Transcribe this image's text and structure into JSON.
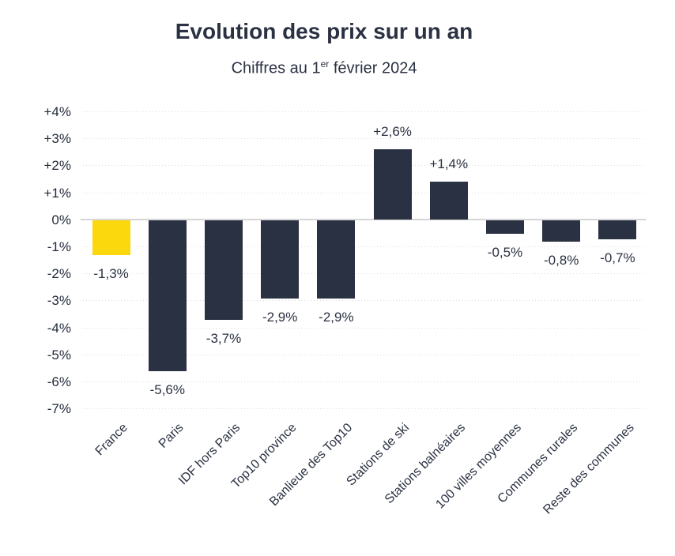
{
  "header": {
    "subtitle_prefix": "Chiffres au 1",
    "subtitle_sup": "er",
    "subtitle_suffix": " février 2024"
  },
  "chart_data": {
    "type": "bar",
    "title": "Evolution des prix sur un an",
    "subtitle": "Chiffres au 1er février 2024",
    "categories": [
      "France",
      "Paris",
      "IDF hors Paris",
      "Top10 province",
      "Banlieue des Top10",
      "Stations de ski",
      "Stations balnéaires",
      "100 villes moyennes",
      "Communes rurales",
      "Reste des communes"
    ],
    "values": [
      -1.3,
      -5.6,
      -3.7,
      -2.9,
      -2.9,
      2.6,
      1.4,
      -0.5,
      -0.8,
      -0.7
    ],
    "value_labels": [
      "-1,3%",
      "-5,6%",
      "-3,7%",
      "-2,9%",
      "-2,9%",
      "+2,6%",
      "+1,4%",
      "-0,5%",
      "-0,8%",
      "-0,7%"
    ],
    "highlight_index": 0,
    "ylim": [
      -7,
      4
    ],
    "ytick_step": 1,
    "ytick_labels": [
      "+4%",
      "+3%",
      "+2%",
      "+1%",
      "0%",
      "-1%",
      "-2%",
      "-3%",
      "-4%",
      "-5%",
      "-6%",
      "-7%"
    ],
    "grid": "horizontal-dotted",
    "legend": "none",
    "xlabel": "",
    "ylabel": "",
    "colors": {
      "bar": "#2A3142",
      "highlight": "#FBD80D",
      "grid": "#DBDBDB",
      "zero_axis": "#D6D6D6",
      "text": "#2A3142"
    }
  }
}
